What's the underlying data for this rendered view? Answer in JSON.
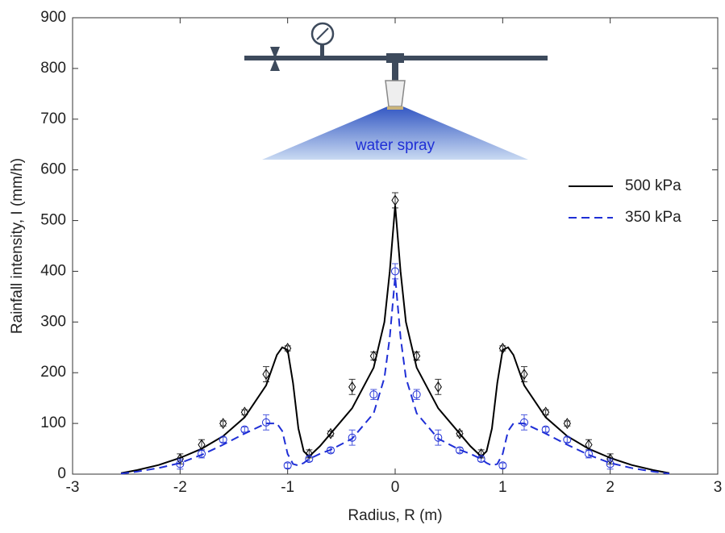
{
  "chart_data": {
    "type": "line",
    "x_label": "Radius, R (m)",
    "y_label": "Rainfall intensity, I (mm/h)",
    "annotation": "water spray",
    "xlim": [
      -3,
      3
    ],
    "ylim": [
      0,
      900
    ],
    "xticks": [
      -3,
      -2,
      -1,
      0,
      1,
      2,
      3
    ],
    "yticks": [
      0,
      100,
      200,
      300,
      400,
      500,
      600,
      700,
      800,
      900
    ],
    "legend": "upper right",
    "series": [
      {
        "name": "500 kPa",
        "color": "#000000",
        "style": "solid",
        "marker": "diamond",
        "x": [
          -2.55,
          -2.4,
          -2.2,
          -2,
          -1.8,
          -1.6,
          -1.4,
          -1.2,
          -1.1,
          -1.05,
          -1,
          -0.95,
          -0.9,
          -0.85,
          -0.8,
          -0.7,
          -0.6,
          -0.4,
          -0.2,
          -0.1,
          -0.05,
          0,
          0.05,
          0.1,
          0.2,
          0.4,
          0.6,
          0.7,
          0.8,
          0.85,
          0.9,
          0.95,
          1,
          1.05,
          1.1,
          1.2,
          1.4,
          1.6,
          1.8,
          2,
          2.2,
          2.4,
          2.55
        ],
        "values": [
          2,
          8,
          18,
          32,
          50,
          75,
          112,
          175,
          235,
          250,
          245,
          180,
          90,
          45,
          35,
          55,
          80,
          130,
          210,
          300,
          400,
          530,
          400,
          300,
          210,
          130,
          80,
          55,
          35,
          45,
          90,
          180,
          245,
          250,
          235,
          175,
          112,
          75,
          50,
          32,
          18,
          8,
          2
        ],
        "points_x": [
          -2,
          -1.8,
          -1.6,
          -1.4,
          -1.2,
          -1,
          -0.8,
          -0.6,
          -0.4,
          -0.2,
          0,
          0.2,
          0.4,
          0.6,
          0.8,
          1,
          1.2,
          1.4,
          1.6,
          1.8,
          2
        ],
        "points_values": [
          30,
          58,
          100,
          122,
          197,
          248,
          40,
          80,
          172,
          233,
          540,
          233,
          172,
          80,
          40,
          248,
          197,
          122,
          100,
          58,
          30
        ],
        "points_errors": [
          10,
          10,
          5,
          5,
          15,
          5,
          8,
          5,
          15,
          8,
          15,
          8,
          15,
          5,
          8,
          5,
          15,
          5,
          5,
          10,
          10
        ]
      },
      {
        "name": "350 kPa",
        "color": "#1f2fd6",
        "style": "dashed",
        "marker": "circle",
        "x": [
          -2.55,
          -2.4,
          -2.2,
          -2,
          -1.8,
          -1.6,
          -1.4,
          -1.2,
          -1.1,
          -1.05,
          -1,
          -0.95,
          -0.9,
          -0.85,
          -0.8,
          -0.7,
          -0.6,
          -0.4,
          -0.2,
          -0.1,
          -0.05,
          0,
          0.05,
          0.1,
          0.2,
          0.4,
          0.6,
          0.7,
          0.8,
          0.85,
          0.9,
          0.95,
          1,
          1.05,
          1.1,
          1.2,
          1.4,
          1.6,
          1.8,
          2,
          2.2,
          2.4,
          2.55
        ],
        "values": [
          1,
          5,
          12,
          22,
          38,
          58,
          80,
          100,
          100,
          85,
          40,
          20,
          17,
          22,
          30,
          40,
          48,
          70,
          120,
          190,
          270,
          390,
          270,
          190,
          120,
          70,
          48,
          40,
          30,
          22,
          17,
          20,
          40,
          85,
          100,
          100,
          80,
          58,
          38,
          22,
          12,
          5,
          1
        ],
        "points_x": [
          -2,
          -1.8,
          -1.6,
          -1.4,
          -1.2,
          -1,
          -0.8,
          -0.6,
          -0.4,
          -0.2,
          0,
          0.2,
          0.4,
          0.6,
          0.8,
          1,
          1.2,
          1.4,
          1.6,
          1.8,
          2
        ],
        "points_values": [
          20,
          40,
          68,
          88,
          102,
          17,
          30,
          47,
          72,
          157,
          400,
          157,
          72,
          47,
          30,
          17,
          102,
          88,
          68,
          40,
          20
        ],
        "points_errors": [
          10,
          8,
          5,
          5,
          15,
          5,
          5,
          5,
          15,
          10,
          15,
          10,
          15,
          5,
          5,
          5,
          15,
          5,
          5,
          8,
          10
        ]
      }
    ]
  }
}
